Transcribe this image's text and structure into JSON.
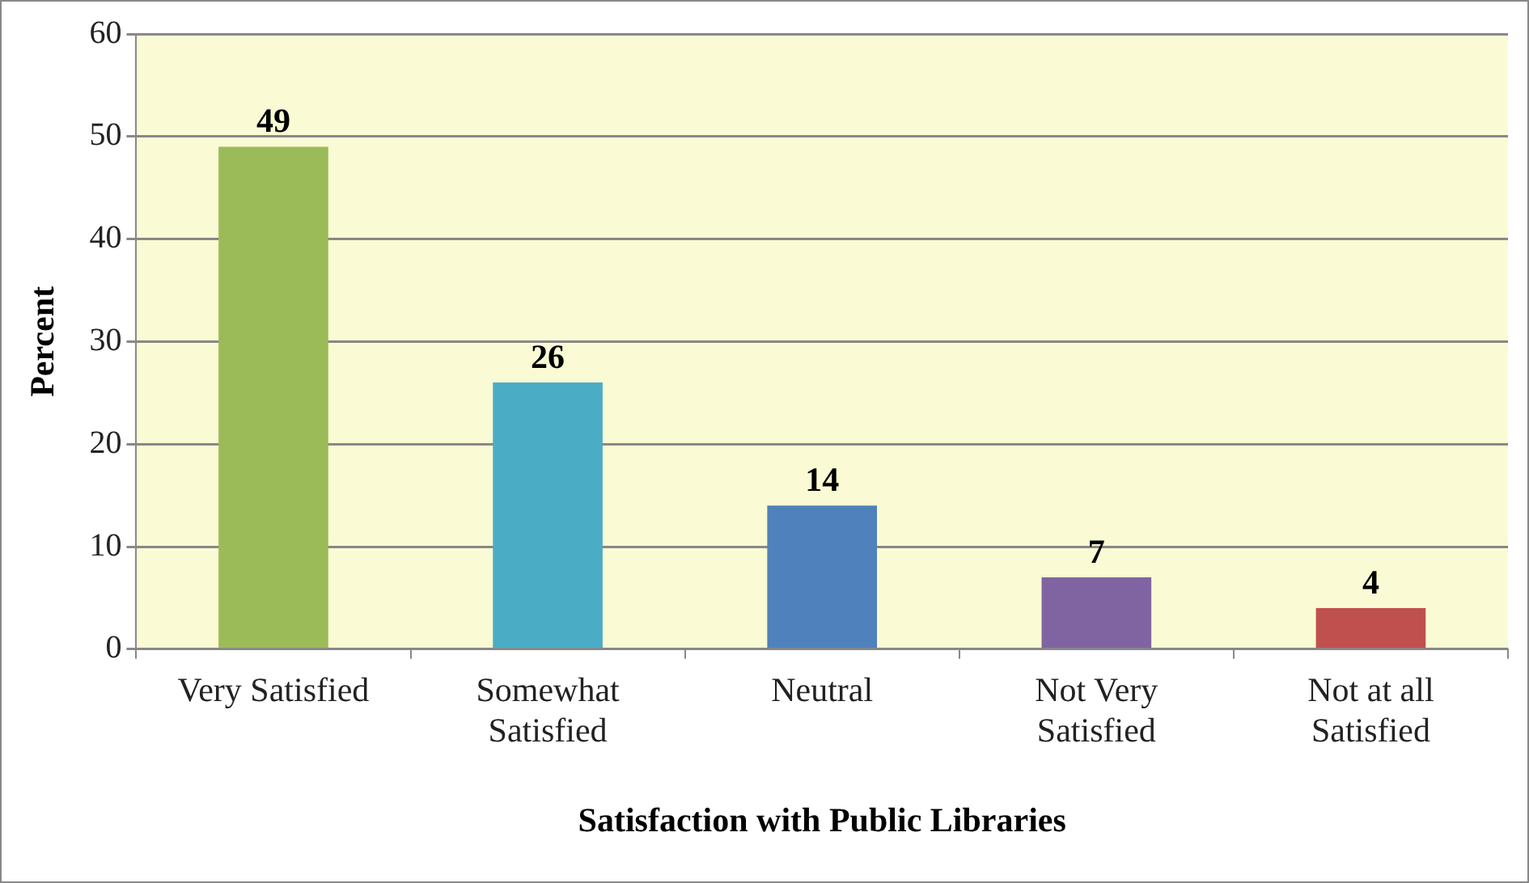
{
  "chart_data": {
    "type": "bar",
    "xlabel": "Satisfaction with Public Libraries",
    "ylabel": "Percent",
    "categories": [
      "Very Satisfied",
      "Somewhat Satisfied",
      "Neutral",
      "Not Very Satisfied",
      "Not at all Satisfied"
    ],
    "values": [
      49,
      26,
      14,
      7,
      4
    ],
    "colors": [
      "#9bbb59",
      "#4bacc6",
      "#4f81bd",
      "#8064a2",
      "#c0504d"
    ],
    "ylim": [
      0,
      60
    ],
    "yticks": [
      0,
      10,
      20,
      30,
      40,
      50,
      60
    ],
    "grid": "y",
    "data_labels": true
  }
}
